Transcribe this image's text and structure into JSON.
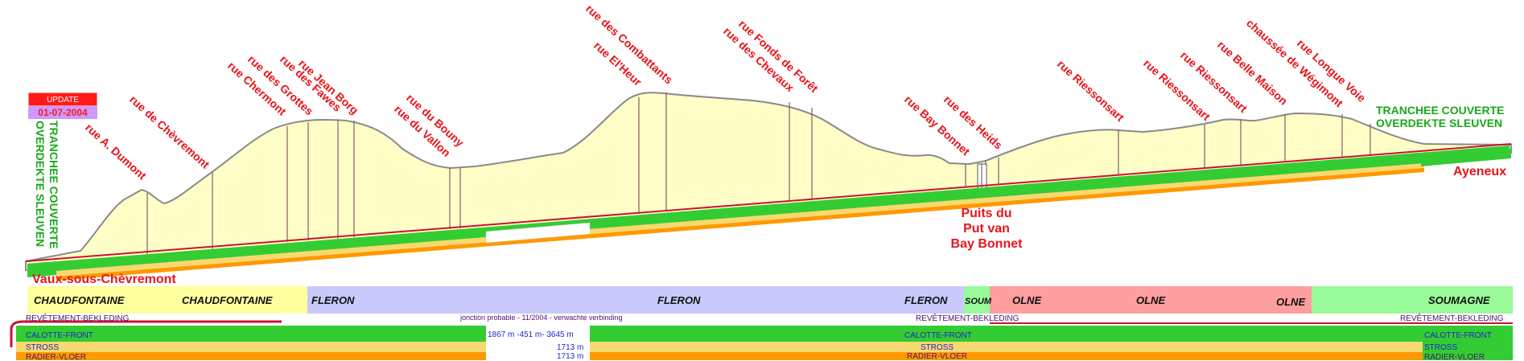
{
  "update": {
    "label": "UPDATE",
    "date": "01-07-2004"
  },
  "tranchee_left": {
    "line1": "TRANCHEE COUVERTE",
    "line2": "OVERDEKTE SLEUVEN"
  },
  "tranchee_right": {
    "line1": "TRANCHEE COUVERTE",
    "line2": "OVERDEKTE SLEUVEN"
  },
  "endpoints": {
    "west": "Vaux-sous-Chèvremont",
    "east": "Ayeneux"
  },
  "puits": {
    "line1": "Puits du",
    "line2": "Put van",
    "line3": "Bay Bonnet"
  },
  "streets": [
    "rue A. Dumont",
    "rue de Chèvremont",
    "rue Chermont",
    "rue des Grottes",
    "rue des Fawes",
    "rue Jean Borg",
    "rue du Bouny",
    "rue du Vallon",
    "rue des Combattants",
    "rue El'Heur",
    "rue Fonds de Forêt",
    "rue des Chevaux",
    "rue Bay Bonnet",
    "rue des Heids",
    "rue Riessonsart",
    "rue Riessonsart",
    "rue Riessonsart",
    "rue Belle Maison",
    "chaussée de Wégimont",
    "rue Longue Voie"
  ],
  "communes": [
    {
      "name": "CHAUDFONTAINE",
      "color": "#ffff9e"
    },
    {
      "name": "CHAUDFONTAINE",
      "color": "#ffff9e"
    },
    {
      "name": "FLERON",
      "color": "#c9c9fb"
    },
    {
      "name": "FLERON",
      "color": "#c9c9fb"
    },
    {
      "name": "FLERON",
      "color": "#c9c9fb"
    },
    {
      "name": "SOUM",
      "color": "#99fb99"
    },
    {
      "name": "OLNE",
      "color": "#ff9e9e"
    },
    {
      "name": "OLNE",
      "color": "#ff9e9e"
    },
    {
      "name": "OLNE",
      "color": "#ff9e9e"
    },
    {
      "name": "SOUMAGNE",
      "color": "#99fb99"
    }
  ],
  "legend": {
    "revetement": "REVÊTEMENT-BEKLEDING",
    "junction": "jonction probable - 11/2004 - verwachte verbinding",
    "calotte": "CALOTTE-FRONT",
    "stross": "STROSS",
    "radier": "RADIER-VLOER",
    "calotte_progress": "1867 m -451 m- 3645 m",
    "stross_progress": "1713 m",
    "radier_progress": "1713 m"
  },
  "colors": {
    "terrain": "#fefec6",
    "calotte": "#33cc33",
    "stross": "#f8d870",
    "radier": "#ff9900",
    "revetement": "#cc1133",
    "update_bg": "#ff1a1a",
    "update_date_bg": "#cc99ff"
  }
}
